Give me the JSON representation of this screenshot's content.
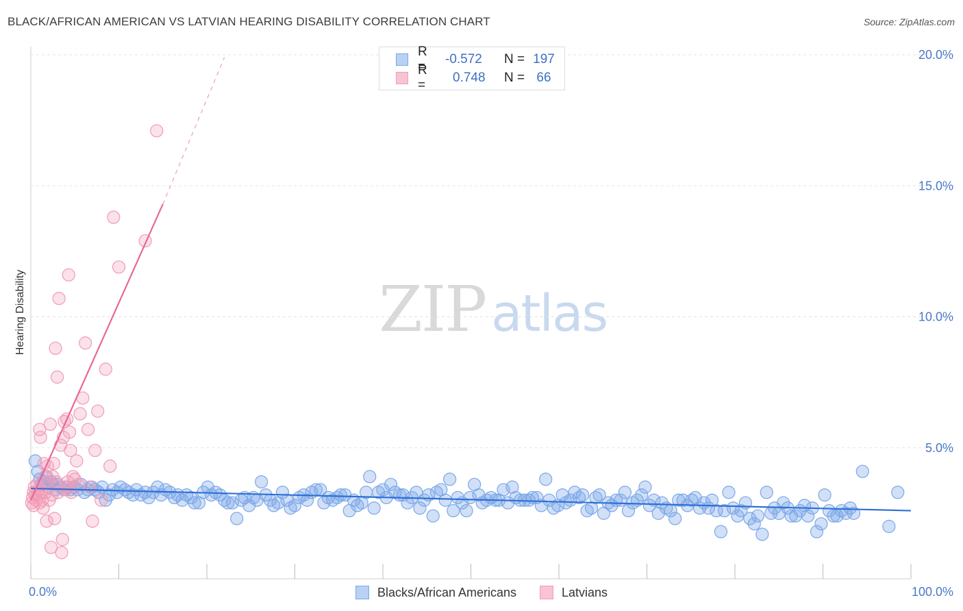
{
  "title": "BLACK/AFRICAN AMERICAN VS LATVIAN HEARING DISABILITY CORRELATION CHART",
  "source": "Source: ZipAtlas.com",
  "watermark": {
    "zip": "ZIP",
    "atlas": "atlas"
  },
  "legend": {
    "rows": [
      {
        "r_label": "R =",
        "r_value": "-0.572",
        "n_label": "N =",
        "n_value": "197",
        "color": "#7aa7e8"
      },
      {
        "r_label": "R =",
        "r_value": "0.748",
        "n_label": "N =",
        "n_value": "66",
        "color": "#f19bb6"
      }
    ]
  },
  "bottom_legend": [
    {
      "label": "Blacks/African Americans",
      "color": "#7aa7e8"
    },
    {
      "label": "Latvians",
      "color": "#f19bb6"
    }
  ],
  "chart_data": {
    "type": "scatter",
    "title": "BLACK/AFRICAN AMERICAN VS LATVIAN HEARING DISABILITY CORRELATION CHART",
    "xlabel": "",
    "ylabel": "Hearing Disability",
    "xlim": [
      0,
      100
    ],
    "ylim": [
      0,
      20
    ],
    "x_tick_labels": [
      "0.0%",
      "100.0%"
    ],
    "y_tick_labels": [
      "5.0%",
      "10.0%",
      "15.0%",
      "20.0%"
    ],
    "y_ticks": [
      5,
      10,
      15,
      20
    ],
    "grid": true,
    "series": [
      {
        "name": "Blacks/African Americans",
        "color": "#7aa7e8",
        "trend": {
          "x0": 0,
          "y0": 3.45,
          "x1": 100,
          "y1": 2.6
        },
        "points": [
          [
            0.5,
            4.5
          ],
          [
            0.8,
            4.1
          ],
          [
            1.0,
            3.8
          ],
          [
            1.2,
            3.6
          ],
          [
            1.5,
            3.7
          ],
          [
            1.8,
            3.9
          ],
          [
            2.0,
            3.5
          ],
          [
            2.3,
            3.7
          ],
          [
            2.5,
            3.6
          ],
          [
            2.8,
            3.4
          ],
          [
            3.0,
            3.6
          ],
          [
            3.4,
            3.5
          ],
          [
            3.8,
            3.4
          ],
          [
            4.1,
            3.5
          ],
          [
            4.5,
            3.4
          ],
          [
            4.9,
            3.5
          ],
          [
            5.3,
            3.4
          ],
          [
            5.7,
            3.6
          ],
          [
            6.1,
            3.3
          ],
          [
            6.5,
            3.4
          ],
          [
            6.9,
            3.5
          ],
          [
            7.3,
            3.4
          ],
          [
            7.7,
            3.3
          ],
          [
            8.1,
            3.5
          ],
          [
            8.5,
            3.0
          ],
          [
            8.9,
            3.2
          ],
          [
            9.3,
            3.4
          ],
          [
            9.8,
            3.3
          ],
          [
            10.2,
            3.5
          ],
          [
            10.7,
            3.4
          ],
          [
            11.1,
            3.3
          ],
          [
            11.6,
            3.2
          ],
          [
            12.0,
            3.4
          ],
          [
            12.5,
            3.2
          ],
          [
            13.0,
            3.3
          ],
          [
            13.4,
            3.1
          ],
          [
            13.9,
            3.3
          ],
          [
            14.4,
            3.5
          ],
          [
            14.8,
            3.2
          ],
          [
            15.3,
            3.4
          ],
          [
            15.8,
            3.3
          ],
          [
            16.3,
            3.1
          ],
          [
            16.7,
            3.2
          ],
          [
            17.2,
            3.0
          ],
          [
            17.7,
            3.2
          ],
          [
            18.2,
            3.1
          ],
          [
            18.6,
            2.9
          ],
          [
            19.1,
            2.9
          ],
          [
            19.6,
            3.3
          ],
          [
            20.1,
            3.5
          ],
          [
            20.5,
            3.2
          ],
          [
            21.0,
            3.3
          ],
          [
            21.5,
            3.2
          ],
          [
            22.0,
            3.0
          ],
          [
            22.4,
            2.9
          ],
          [
            22.9,
            2.9
          ],
          [
            23.4,
            2.3
          ],
          [
            23.9,
            3.0
          ],
          [
            24.3,
            3.1
          ],
          [
            24.8,
            2.8
          ],
          [
            25.3,
            3.1
          ],
          [
            25.7,
            3.0
          ],
          [
            26.2,
            3.7
          ],
          [
            26.7,
            3.2
          ],
          [
            27.2,
            3.0
          ],
          [
            27.6,
            2.8
          ],
          [
            28.1,
            2.9
          ],
          [
            28.6,
            3.3
          ],
          [
            29.1,
            3.0
          ],
          [
            29.5,
            2.7
          ],
          [
            30.0,
            2.8
          ],
          [
            30.5,
            3.1
          ],
          [
            31.0,
            3.2
          ],
          [
            31.4,
            3.0
          ],
          [
            31.9,
            3.3
          ],
          [
            32.4,
            3.4
          ],
          [
            32.9,
            3.4
          ],
          [
            33.3,
            2.9
          ],
          [
            33.8,
            3.1
          ],
          [
            34.3,
            3.0
          ],
          [
            34.8,
            3.1
          ],
          [
            35.2,
            3.2
          ],
          [
            35.7,
            3.2
          ],
          [
            36.2,
            2.6
          ],
          [
            36.7,
            3.0
          ],
          [
            37.1,
            2.8
          ],
          [
            37.6,
            2.9
          ],
          [
            38.1,
            3.3
          ],
          [
            38.5,
            3.9
          ],
          [
            39.0,
            2.7
          ],
          [
            39.5,
            3.3
          ],
          [
            40.0,
            3.4
          ],
          [
            40.4,
            3.1
          ],
          [
            40.9,
            3.6
          ],
          [
            41.4,
            3.3
          ],
          [
            41.9,
            3.2
          ],
          [
            42.3,
            3.2
          ],
          [
            42.8,
            2.9
          ],
          [
            43.3,
            3.1
          ],
          [
            43.8,
            3.3
          ],
          [
            44.2,
            2.7
          ],
          [
            44.7,
            3.0
          ],
          [
            45.2,
            3.2
          ],
          [
            45.7,
            2.4
          ],
          [
            46.1,
            3.3
          ],
          [
            46.6,
            3.4
          ],
          [
            47.1,
            3.0
          ],
          [
            47.6,
            3.8
          ],
          [
            48.0,
            2.6
          ],
          [
            48.5,
            3.1
          ],
          [
            49.0,
            2.9
          ],
          [
            49.5,
            2.6
          ],
          [
            49.9,
            3.1
          ],
          [
            50.4,
            3.6
          ],
          [
            50.9,
            3.2
          ],
          [
            51.3,
            2.9
          ],
          [
            51.8,
            3.0
          ],
          [
            52.3,
            3.1
          ],
          [
            52.8,
            3.0
          ],
          [
            53.2,
            3.0
          ],
          [
            53.7,
            3.4
          ],
          [
            54.2,
            2.9
          ],
          [
            54.7,
            3.5
          ],
          [
            55.1,
            3.1
          ],
          [
            55.6,
            3.0
          ],
          [
            56.1,
            3.0
          ],
          [
            56.6,
            3.0
          ],
          [
            57.0,
            3.1
          ],
          [
            57.5,
            3.1
          ],
          [
            58.0,
            2.8
          ],
          [
            58.5,
            3.8
          ],
          [
            58.9,
            3.0
          ],
          [
            59.4,
            2.7
          ],
          [
            59.9,
            2.8
          ],
          [
            60.4,
            3.2
          ],
          [
            60.8,
            2.9
          ],
          [
            61.3,
            3.0
          ],
          [
            61.8,
            3.3
          ],
          [
            62.3,
            3.1
          ],
          [
            62.7,
            3.2
          ],
          [
            63.2,
            2.6
          ],
          [
            63.7,
            2.7
          ],
          [
            64.2,
            3.1
          ],
          [
            64.6,
            3.2
          ],
          [
            65.1,
            2.5
          ],
          [
            65.6,
            2.9
          ],
          [
            66.0,
            2.8
          ],
          [
            66.5,
            3.0
          ],
          [
            67.0,
            3.0
          ],
          [
            67.5,
            3.3
          ],
          [
            67.9,
            2.6
          ],
          [
            68.4,
            2.9
          ],
          [
            68.9,
            3.0
          ],
          [
            69.4,
            3.2
          ],
          [
            69.8,
            3.5
          ],
          [
            70.3,
            2.8
          ],
          [
            70.8,
            3.0
          ],
          [
            71.3,
            2.5
          ],
          [
            71.7,
            2.9
          ],
          [
            72.2,
            2.7
          ],
          [
            72.7,
            2.6
          ],
          [
            73.2,
            2.3
          ],
          [
            73.6,
            3.0
          ],
          [
            74.1,
            3.0
          ],
          [
            74.6,
            2.8
          ],
          [
            75.1,
            3.0
          ],
          [
            75.5,
            3.1
          ],
          [
            76.0,
            2.7
          ],
          [
            76.5,
            2.9
          ],
          [
            77.0,
            2.7
          ],
          [
            77.4,
            3.0
          ],
          [
            77.9,
            2.6
          ],
          [
            78.4,
            1.8
          ],
          [
            78.8,
            2.6
          ],
          [
            79.3,
            3.3
          ],
          [
            79.8,
            2.7
          ],
          [
            80.3,
            2.4
          ],
          [
            80.7,
            2.6
          ],
          [
            81.2,
            2.9
          ],
          [
            81.7,
            2.3
          ],
          [
            82.2,
            2.1
          ],
          [
            82.6,
            2.4
          ],
          [
            83.1,
            1.7
          ],
          [
            83.6,
            3.3
          ],
          [
            84.1,
            2.5
          ],
          [
            84.5,
            2.7
          ],
          [
            85.0,
            2.5
          ],
          [
            85.5,
            2.9
          ],
          [
            86.0,
            2.7
          ],
          [
            86.4,
            2.4
          ],
          [
            86.9,
            2.4
          ],
          [
            87.4,
            2.6
          ],
          [
            87.9,
            2.8
          ],
          [
            88.3,
            2.4
          ],
          [
            88.8,
            2.7
          ],
          [
            89.3,
            1.8
          ],
          [
            89.8,
            2.1
          ],
          [
            90.2,
            3.2
          ],
          [
            90.7,
            2.6
          ],
          [
            91.2,
            2.4
          ],
          [
            91.6,
            2.4
          ],
          [
            92.1,
            2.6
          ],
          [
            92.6,
            2.5
          ],
          [
            93.1,
            2.7
          ],
          [
            93.5,
            2.5
          ],
          [
            94.5,
            4.1
          ],
          [
            98.5,
            3.3
          ],
          [
            97.5,
            2.0
          ]
        ]
      },
      {
        "name": "Latvians",
        "color": "#f19bb6",
        "trend": {
          "x0": 0,
          "y0": 3.0,
          "x1": 15,
          "y1": 14.3,
          "dashed_to": {
            "x": 22,
            "y": 19.9
          }
        },
        "points": [
          [
            0.1,
            2.9
          ],
          [
            0.2,
            3.1
          ],
          [
            0.3,
            2.8
          ],
          [
            0.3,
            3.3
          ],
          [
            0.4,
            3.5
          ],
          [
            0.5,
            3.2
          ],
          [
            0.6,
            3.0
          ],
          [
            0.7,
            3.6
          ],
          [
            0.8,
            3.2
          ],
          [
            0.9,
            3.4
          ],
          [
            1.0,
            2.9
          ],
          [
            1.0,
            5.7
          ],
          [
            1.1,
            5.4
          ],
          [
            1.2,
            3.3
          ],
          [
            1.3,
            3.0
          ],
          [
            1.4,
            2.7
          ],
          [
            1.5,
            4.4
          ],
          [
            1.6,
            3.9
          ],
          [
            1.7,
            3.3
          ],
          [
            1.8,
            2.2
          ],
          [
            1.9,
            4.3
          ],
          [
            2.0,
            3.7
          ],
          [
            2.1,
            3.0
          ],
          [
            2.2,
            5.9
          ],
          [
            2.3,
            1.2
          ],
          [
            2.4,
            3.2
          ],
          [
            2.5,
            3.9
          ],
          [
            2.6,
            4.4
          ],
          [
            2.7,
            2.3
          ],
          [
            2.8,
            8.8
          ],
          [
            2.9,
            3.7
          ],
          [
            3.0,
            7.7
          ],
          [
            3.1,
            3.3
          ],
          [
            3.2,
            10.7
          ],
          [
            3.4,
            5.1
          ],
          [
            3.5,
            1.0
          ],
          [
            3.6,
            1.5
          ],
          [
            3.7,
            5.4
          ],
          [
            3.8,
            6.0
          ],
          [
            3.9,
            3.5
          ],
          [
            4.0,
            3.4
          ],
          [
            4.1,
            6.1
          ],
          [
            4.2,
            3.7
          ],
          [
            4.3,
            11.6
          ],
          [
            4.4,
            5.6
          ],
          [
            4.5,
            4.9
          ],
          [
            4.6,
            3.3
          ],
          [
            4.8,
            3.9
          ],
          [
            5.0,
            3.8
          ],
          [
            5.2,
            4.5
          ],
          [
            5.4,
            3.6
          ],
          [
            5.6,
            6.3
          ],
          [
            5.9,
            6.9
          ],
          [
            6.2,
            9.0
          ],
          [
            6.5,
            5.7
          ],
          [
            6.7,
            3.5
          ],
          [
            7.0,
            2.2
          ],
          [
            7.3,
            4.9
          ],
          [
            7.6,
            6.4
          ],
          [
            8.0,
            3.0
          ],
          [
            8.5,
            8.0
          ],
          [
            9.0,
            4.3
          ],
          [
            9.4,
            13.8
          ],
          [
            10.0,
            11.9
          ],
          [
            13.0,
            12.9
          ],
          [
            14.3,
            17.1
          ]
        ]
      }
    ]
  }
}
